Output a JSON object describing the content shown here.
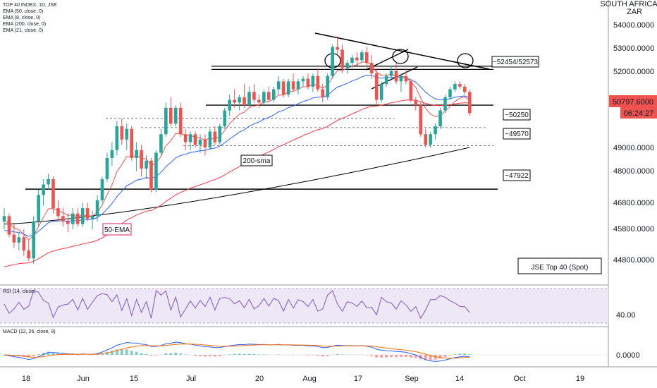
{
  "legend": {
    "symbol": "TOP 40 INDEX, 1D, JSE",
    "ema50": "EMA (50, close, 0)",
    "ema8": "EMA (8, close, 0)",
    "ema200": "EMA (200, close, 0)",
    "ema21": "EMA (21, close, 0)"
  },
  "currency": {
    "line1": "SOUTH AFRICAN",
    "line2": "ZAR"
  },
  "price_axis": [
    "54000.0000",
    "53000.0000",
    "52000.0000",
    "50800.0000",
    "49000.0000",
    "48000.0000",
    "46800.0000",
    "45800.0000",
    "44800.0000"
  ],
  "last_price": {
    "value": "50797.6000",
    "countdown": "06:24:27"
  },
  "annotations": {
    "resistance": "~52454/52573",
    "level_50250": "~50250",
    "level_49570": "~49570",
    "level_47922": "~47922",
    "sma200": "200-sma",
    "ema50": "50-EMA",
    "title": "JSE Top 40 (Spot)"
  },
  "rsi": {
    "label": "RSI (14, close)",
    "axis_value": "40.00"
  },
  "macd": {
    "label": "MACD (12, 26, close, 9)",
    "axis_value": "0.0000"
  },
  "time_axis": [
    "18",
    "Jun",
    "15",
    "Jul",
    "20",
    "Aug",
    "17",
    "Sep",
    "14",
    "Oct",
    "19"
  ],
  "colors": {
    "up": "#26a69a",
    "down": "#ef5350",
    "ema8": "#ef5350",
    "ema21": "#2962ff",
    "ema50": "#f23645",
    "ema200": "#000000",
    "rsi": "#7e57c2",
    "rsi_band": "#ede7f6"
  },
  "chart_data": {
    "type": "candlestick",
    "y_range": [
      44400,
      55000
    ],
    "series": [
      {
        "name": "EMA (8, close, 0)"
      },
      {
        "name": "EMA (21, close, 0)"
      },
      {
        "name": "EMA (50, close, 0)"
      },
      {
        "name": "EMA (200, close, 0)"
      }
    ],
    "horizontal_levels": [
      52454,
      52573,
      50250,
      49570,
      47922
    ],
    "candles": [
      [
        46700,
        47200,
        46400,
        46900
      ],
      [
        46900,
        47000,
        46100,
        46200
      ],
      [
        46200,
        46600,
        45700,
        45900
      ],
      [
        45900,
        46300,
        45600,
        46100
      ],
      [
        46100,
        46400,
        45400,
        45600
      ],
      [
        45600,
        46000,
        45200,
        45300
      ],
      [
        45300,
        46900,
        45100,
        46700
      ],
      [
        46700,
        47900,
        46500,
        47700
      ],
      [
        47700,
        48300,
        47300,
        48100
      ],
      [
        48100,
        48500,
        47900,
        48300
      ],
      [
        48300,
        48400,
        47000,
        47200
      ],
      [
        47200,
        47500,
        46700,
        46900
      ],
      [
        46900,
        47200,
        46500,
        46700
      ],
      [
        46700,
        47000,
        46300,
        46600
      ],
      [
        46600,
        47200,
        46400,
        47000
      ],
      [
        47000,
        47200,
        46500,
        46600
      ],
      [
        46600,
        47400,
        46500,
        47200
      ],
      [
        47200,
        47400,
        46700,
        46800
      ],
      [
        46800,
        47100,
        46400,
        46900
      ],
      [
        46900,
        47700,
        46700,
        47500
      ],
      [
        47500,
        48400,
        47400,
        48300
      ],
      [
        48300,
        49300,
        48200,
        49100
      ],
      [
        49100,
        49700,
        48800,
        49400
      ],
      [
        49400,
        50500,
        49200,
        50300
      ],
      [
        50300,
        50600,
        49600,
        49800
      ],
      [
        49800,
        50400,
        49400,
        50200
      ],
      [
        50200,
        50300,
        49000,
        49100
      ],
      [
        49100,
        49700,
        48600,
        49400
      ],
      [
        49400,
        49600,
        48400,
        48700
      ],
      [
        48700,
        49200,
        48300,
        49000
      ],
      [
        49000,
        49100,
        47800,
        47900
      ],
      [
        47900,
        49400,
        47800,
        49300
      ],
      [
        49300,
        50200,
        49200,
        50000
      ],
      [
        50000,
        51200,
        49900,
        51000
      ],
      [
        51000,
        51400,
        50300,
        50400
      ],
      [
        50400,
        51100,
        50300,
        51000
      ],
      [
        51000,
        51200,
        49900,
        50000
      ],
      [
        50000,
        50200,
        49400,
        49700
      ],
      [
        49700,
        50100,
        49400,
        50000
      ],
      [
        50000,
        50100,
        49500,
        49600
      ],
      [
        49600,
        50000,
        49300,
        49800
      ],
      [
        49800,
        50000,
        49200,
        49500
      ],
      [
        49500,
        50200,
        49400,
        50100
      ],
      [
        50100,
        50300,
        49600,
        49700
      ],
      [
        49700,
        50400,
        49600,
        50300
      ],
      [
        50300,
        51000,
        50200,
        50900
      ],
      [
        50900,
        51500,
        50700,
        51300
      ],
      [
        51300,
        51700,
        51000,
        51200
      ],
      [
        51200,
        51500,
        50900,
        51400
      ],
      [
        51400,
        51900,
        51000,
        51100
      ],
      [
        51100,
        51800,
        51000,
        51600
      ],
      [
        51600,
        51900,
        51200,
        51300
      ],
      [
        51300,
        51500,
        51000,
        51200
      ],
      [
        51200,
        51700,
        51100,
        51600
      ],
      [
        51600,
        51800,
        51200,
        51300
      ],
      [
        51300,
        51800,
        51200,
        51700
      ],
      [
        51700,
        52200,
        51500,
        52000
      ],
      [
        52000,
        52100,
        51400,
        51500
      ],
      [
        51500,
        52100,
        51400,
        52000
      ],
      [
        52000,
        52300,
        51600,
        51700
      ],
      [
        51700,
        52100,
        51500,
        52000
      ],
      [
        52000,
        52200,
        51800,
        52100
      ],
      [
        52100,
        52300,
        51700,
        51800
      ],
      [
        51800,
        52300,
        51600,
        52200
      ],
      [
        52200,
        52500,
        51600,
        51700
      ],
      [
        51700,
        51900,
        51200,
        51400
      ],
      [
        51400,
        52300,
        51300,
        52200
      ],
      [
        52200,
        53400,
        52100,
        53300
      ],
      [
        53300,
        53700,
        53000,
        53200
      ],
      [
        53200,
        53400,
        52300,
        52500
      ],
      [
        52500,
        52800,
        52300,
        52700
      ],
      [
        52700,
        53000,
        52500,
        52900
      ],
      [
        52900,
        53100,
        52600,
        52800
      ],
      [
        52800,
        53200,
        52700,
        53100
      ],
      [
        53100,
        53300,
        52500,
        52700
      ],
      [
        52700,
        53000,
        52100,
        52300
      ],
      [
        52300,
        52500,
        51100,
        51300
      ],
      [
        51300,
        52000,
        51200,
        51900
      ],
      [
        51900,
        52300,
        51800,
        52200
      ],
      [
        52200,
        52600,
        52100,
        52400
      ],
      [
        52400,
        52700,
        51900,
        52000
      ],
      [
        52000,
        52300,
        51600,
        52200
      ],
      [
        52200,
        52500,
        51900,
        52000
      ],
      [
        52000,
        52100,
        51200,
        51300
      ],
      [
        51300,
        51400,
        50900,
        51100
      ],
      [
        51100,
        51200,
        49900,
        50000
      ],
      [
        50000,
        50200,
        49500,
        49600
      ],
      [
        49600,
        50100,
        49500,
        50000
      ],
      [
        50000,
        50400,
        49800,
        50300
      ],
      [
        50300,
        51000,
        50200,
        50900
      ],
      [
        50900,
        51500,
        50800,
        51400
      ],
      [
        51400,
        51800,
        51300,
        51700
      ],
      [
        51700,
        52000,
        51600,
        51900
      ],
      [
        51900,
        52000,
        51700,
        51800
      ],
      [
        51800,
        51900,
        51500,
        51600
      ],
      [
        51600,
        51700,
        50700,
        50800
      ]
    ]
  }
}
